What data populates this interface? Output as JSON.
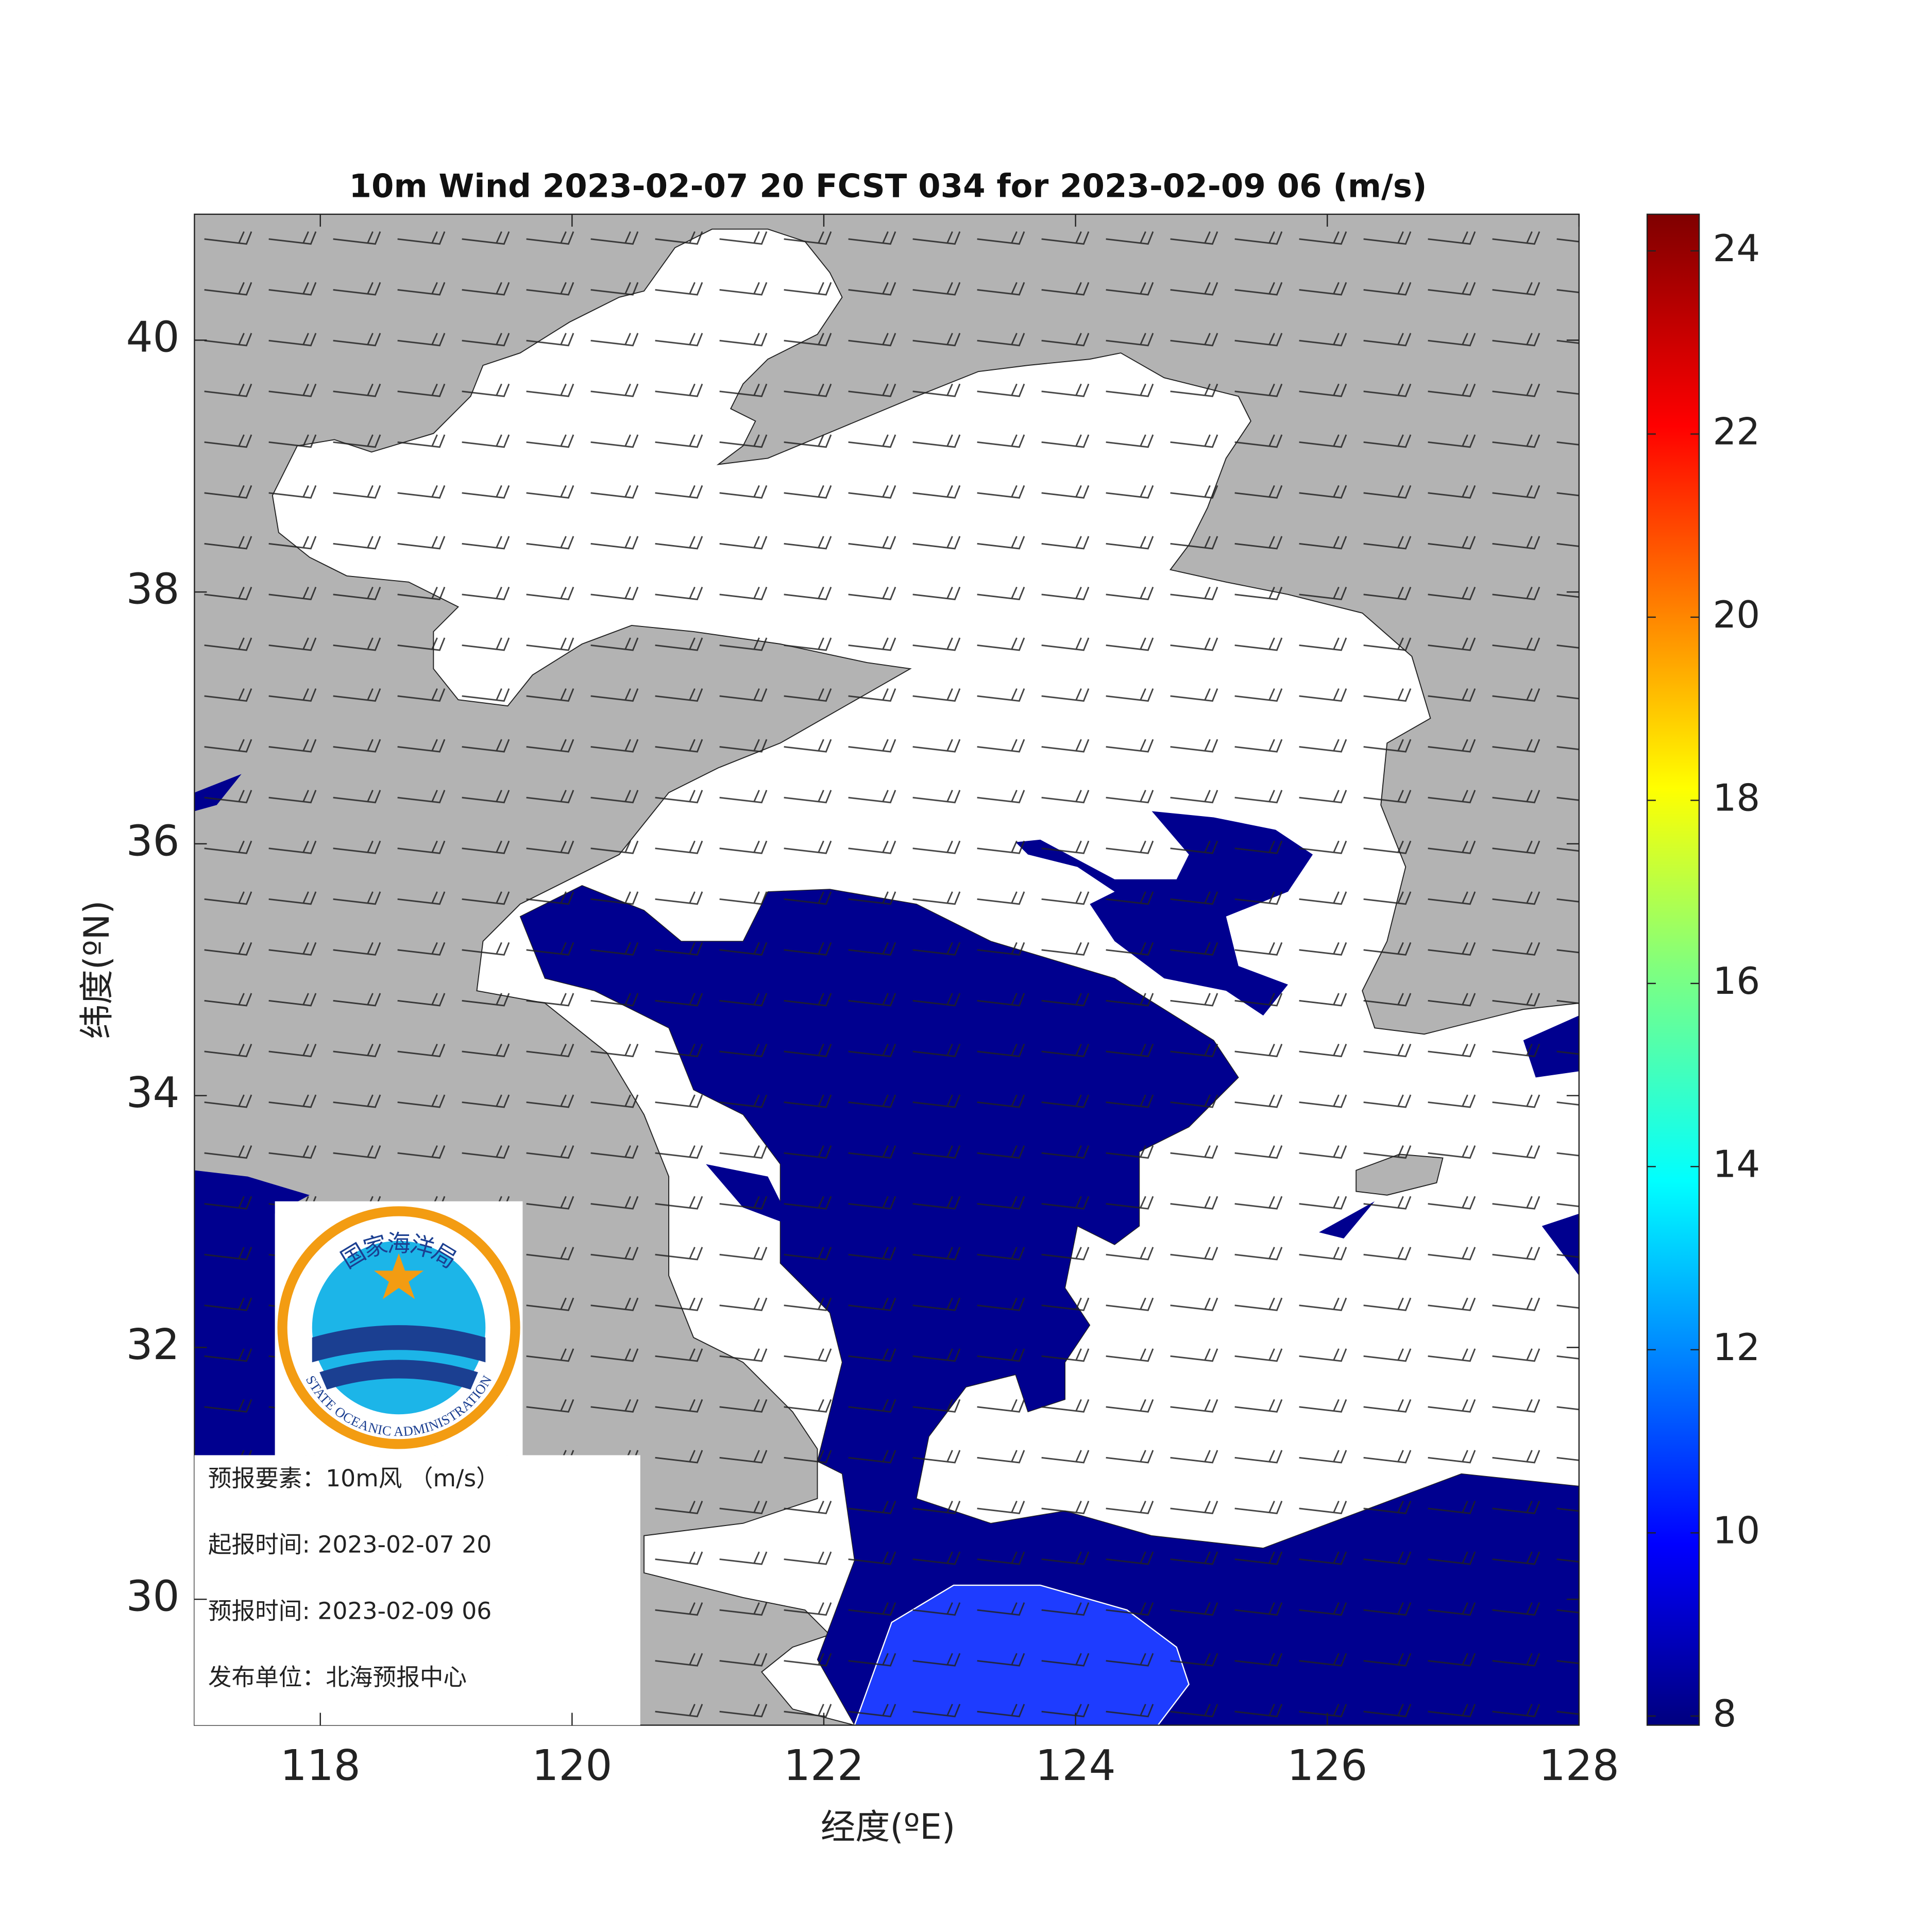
{
  "chart_data": {
    "type": "map",
    "title": "10m Wind 2023-02-07 20 FCST 034 for 2023-02-09 06 (m/s)",
    "x_label": "经度(ºE)",
    "y_label": "纬度(ºN)",
    "xlim": [
      117,
      128
    ],
    "xticks": [
      118,
      120,
      122,
      124,
      126,
      128
    ],
    "ylim": [
      29,
      41
    ],
    "yticks": [
      30,
      32,
      34,
      36,
      38,
      40
    ],
    "colorbar": {
      "lim": [
        7.9,
        24.4
      ],
      "ticks": [
        8,
        10,
        12,
        14,
        16,
        18,
        20,
        22,
        24
      ]
    },
    "info": [
      "预报要素：10m风 （m/s）",
      "起报时间: 2023-02-07 20",
      "预报时间: 2023-02-09 06",
      "发布单位：北海预报中心"
    ],
    "logo": {
      "chinese": "国家海洋局",
      "english": "STATE OCEANIC ADMINISTRATION"
    }
  }
}
